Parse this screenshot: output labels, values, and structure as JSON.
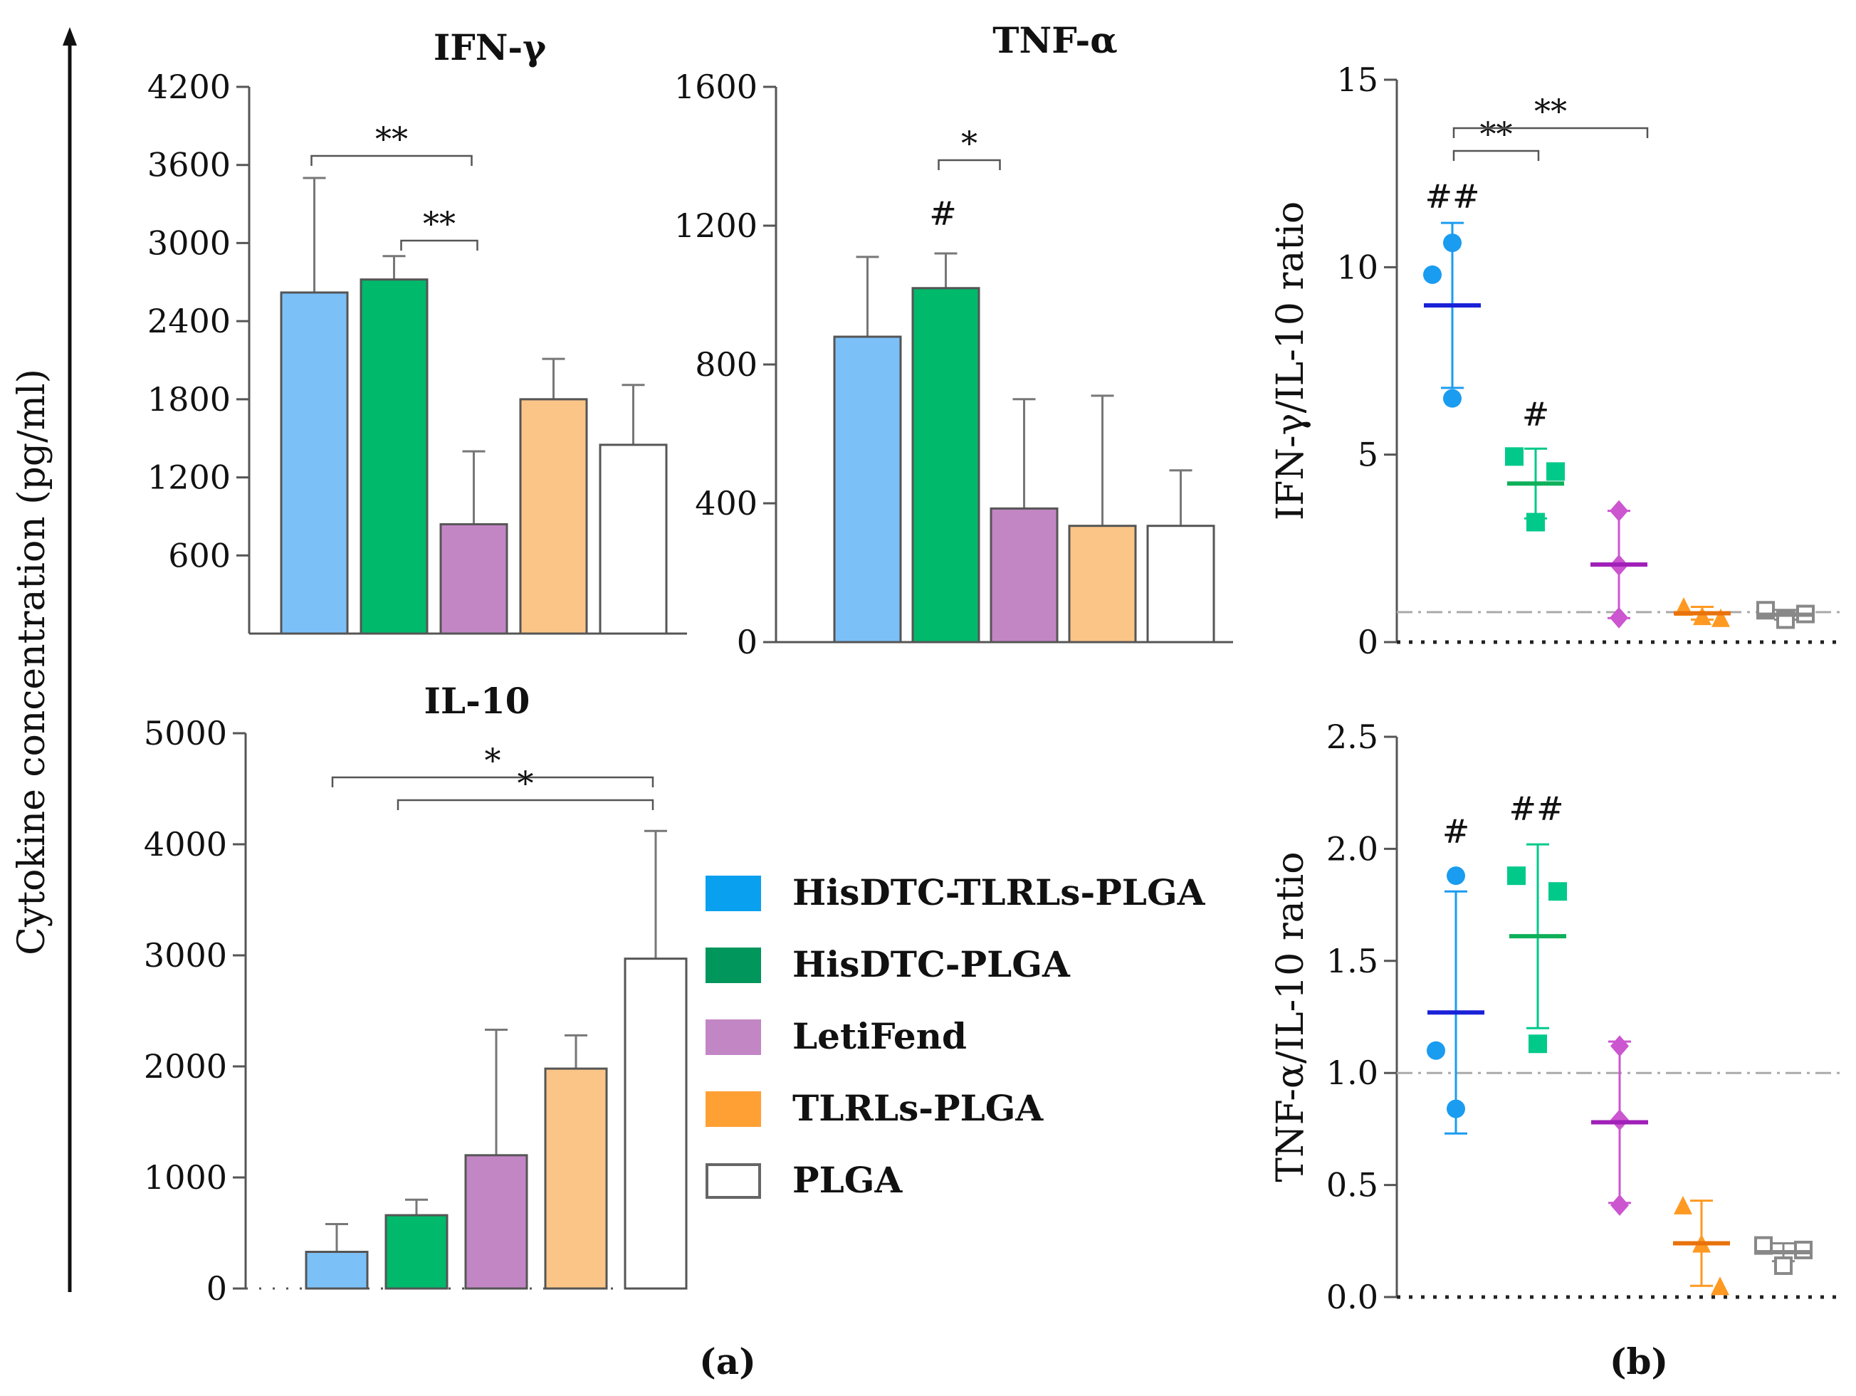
{
  "figure": {
    "shared_y_axis_title": "Cytokine concentration (pg/ml)",
    "panel_a_label": "(a)",
    "panel_b_label": "(b)"
  },
  "colors": {
    "bar_fill": [
      "#7cc0f8",
      "#00b96b",
      "#c386c5",
      "#fbc587",
      "#ffffff"
    ],
    "dot": [
      "#1a9cf0",
      "#00c98a",
      "#cc55d0",
      "#ff9922",
      "#888888"
    ],
    "mean_line": [
      "#1a22d8",
      "#0eb05a",
      "#a020b8",
      "#e8720c",
      "#888888"
    ]
  },
  "legend": {
    "items": [
      {
        "label": "HisDTC-TLRLs-PLGA",
        "color": "#0aa0f0",
        "hollow": false
      },
      {
        "label": "HisDTC-PLGA",
        "color": "#00965c",
        "hollow": false
      },
      {
        "label": "LetiFend",
        "color": "#c386c5",
        "hollow": false
      },
      {
        "label": "TLRLs-PLGA",
        "color": "#ffa035",
        "hollow": false
      },
      {
        "label": "PLGA",
        "color": "#ffffff",
        "hollow": true
      }
    ]
  },
  "chart_data": [
    {
      "id": "ifng",
      "type": "bar",
      "title": "IFN-γ",
      "categories": [
        "HisDTC-TLRLs-PLGA",
        "HisDTC-PLGA",
        "LetiFend",
        "TLRLs-PLGA",
        "PLGA"
      ],
      "values": [
        2620,
        2720,
        840,
        1800,
        1450
      ],
      "errors": [
        880,
        180,
        560,
        310,
        460
      ],
      "ylim": [
        0,
        4200
      ],
      "yticks": [
        600,
        1200,
        1800,
        2400,
        3000,
        3600,
        4200
      ],
      "ytick_labels": [
        "600",
        "1200",
        "1800",
        "2400",
        "3000",
        "3600",
        "4200"
      ],
      "significance": [
        {
          "from": 0,
          "to": 2,
          "label": "**"
        },
        {
          "from": 1,
          "to": 2,
          "label": "**"
        }
      ],
      "markers": []
    },
    {
      "id": "tnfa",
      "type": "bar",
      "title": "TNF-α",
      "categories": [
        "HisDTC-TLRLs-PLGA",
        "HisDTC-PLGA",
        "LetiFend",
        "TLRLs-PLGA",
        "PLGA"
      ],
      "values": [
        880,
        1020,
        385,
        335,
        335
      ],
      "errors": [
        230,
        100,
        315,
        375,
        160
      ],
      "ylim": [
        0,
        1600
      ],
      "yticks": [
        0,
        400,
        800,
        1200,
        1600
      ],
      "ytick_labels": [
        "0",
        "400",
        "800",
        "1200",
        "1600"
      ],
      "significance": [
        {
          "from": 1,
          "to": 1.6,
          "label": "*"
        }
      ],
      "markers": [
        {
          "index": 1,
          "label": "#"
        }
      ]
    },
    {
      "id": "il10",
      "type": "bar",
      "title": "IL-10",
      "categories": [
        "HisDTC-TLRLs-PLGA",
        "HisDTC-PLGA",
        "LetiFend",
        "TLRLs-PLGA",
        "PLGA"
      ],
      "values": [
        330,
        660,
        1200,
        1980,
        2970
      ],
      "errors": [
        250,
        140,
        1130,
        300,
        1150
      ],
      "ylim": [
        0,
        5000
      ],
      "yticks": [
        0,
        1000,
        2000,
        3000,
        4000,
        5000
      ],
      "ytick_labels": [
        "0",
        "1000",
        "2000",
        "3000",
        "4000",
        "5000"
      ],
      "significance": [
        {
          "from": 0,
          "to": 4,
          "label": "*"
        },
        {
          "from": 1,
          "to": 4,
          "label": "*"
        }
      ],
      "markers": []
    },
    {
      "id": "ratio_ifng",
      "type": "scatter",
      "ylabel": "IFN-γ/IL-10 ratio",
      "categories": [
        "HisDTC-TLRLs-PLGA",
        "HisDTC-PLGA",
        "LetiFend",
        "TLRLs-PLGA",
        "PLGA"
      ],
      "shapes": [
        "circle",
        "square",
        "diamond",
        "triangle",
        "hollow-square"
      ],
      "points": [
        [
          10.65,
          9.8,
          6.5
        ],
        [
          4.95,
          4.55,
          3.2
        ],
        [
          3.5,
          2.05,
          0.65
        ],
        [
          0.95,
          0.7,
          0.65
        ],
        [
          0.85,
          0.75,
          0.6
        ]
      ],
      "means": [
        8.98,
        4.23,
        2.07,
        0.77,
        0.73
      ],
      "sd": [
        2.2,
        0.93,
        1.43,
        0.17,
        0.13
      ],
      "ylim": [
        0,
        15
      ],
      "yticks": [
        0,
        5,
        10,
        15
      ],
      "ytick_labels": [
        "0",
        "5",
        "10",
        "15"
      ],
      "reference_line": 0.8,
      "significance": [
        {
          "from": 0,
          "to": 1,
          "label": "**"
        },
        {
          "from": 0,
          "to": 2,
          "label": "**"
        }
      ],
      "markers": [
        {
          "index": 0,
          "label": "##"
        },
        {
          "index": 1,
          "label": "#"
        }
      ]
    },
    {
      "id": "ratio_tnfa",
      "type": "scatter",
      "ylabel": "TNF-α/IL-10 ratio",
      "categories": [
        "HisDTC-TLRLs-PLGA",
        "HisDTC-PLGA",
        "LetiFend",
        "TLRLs-PLGA",
        "PLGA"
      ],
      "shapes": [
        "circle",
        "square",
        "diamond",
        "triangle",
        "hollow-square"
      ],
      "points": [
        [
          1.88,
          1.1,
          0.84
        ],
        [
          1.88,
          1.81,
          1.13
        ],
        [
          1.12,
          0.79,
          0.41
        ],
        [
          0.41,
          0.24,
          0.05
        ],
        [
          0.23,
          0.21,
          0.14
        ]
      ],
      "means": [
        1.27,
        1.61,
        0.78,
        0.24,
        0.2
      ],
      "sd": [
        0.54,
        0.41,
        0.36,
        0.19,
        0.04
      ],
      "ylim": [
        0,
        2.5
      ],
      "yticks": [
        0,
        0.5,
        1.0,
        1.5,
        2.0,
        2.5
      ],
      "ytick_labels": [
        "0.0",
        "0.5",
        "1.0",
        "1.5",
        "2.0",
        "2.5"
      ],
      "reference_line": 1.0,
      "significance": [],
      "markers": [
        {
          "index": 0,
          "label": "#"
        },
        {
          "index": 1,
          "label": "##"
        }
      ]
    }
  ]
}
